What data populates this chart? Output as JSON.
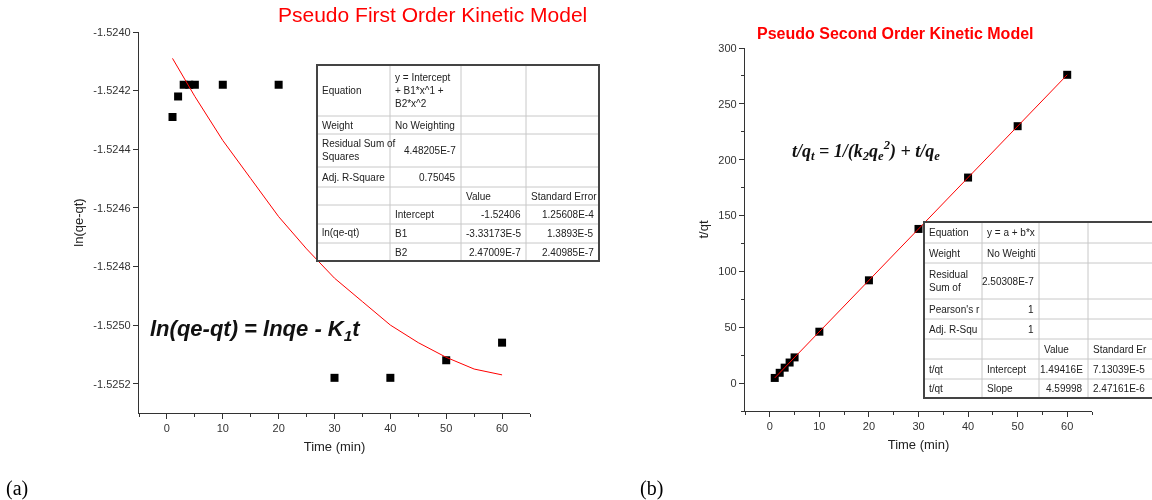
{
  "chart_data": [
    {
      "type": "scatter",
      "title": "Pseudo First Order Kinetic Model",
      "xlabel": "Time (min)",
      "ylabel": "ln(qe-qt)",
      "x": [
        1,
        2,
        3,
        4,
        5,
        10,
        20,
        30,
        40,
        50,
        60
      ],
      "series": [
        {
          "color": "#000000",
          "marker": "square",
          "values": [
            -1.52429,
            -1.52422,
            -1.52418,
            -1.52418,
            -1.52418,
            -1.52418,
            -1.52418,
            -1.52518,
            -1.52518,
            -1.52512,
            -1.52506
          ]
        },
        {
          "type": "line",
          "color": "#ff0000",
          "marker": "none",
          "x": [
            1,
            5,
            10,
            15,
            20,
            25,
            30,
            35,
            40,
            45,
            50,
            55,
            60
          ],
          "values": [
            -1.52409,
            -1.52422,
            -1.52437,
            -1.5245,
            -1.52463,
            -1.52474,
            -1.52484,
            -1.52492,
            -1.525,
            -1.52506,
            -1.52511,
            -1.52515,
            -1.52517
          ]
        }
      ],
      "xlim": [
        -5,
        65
      ],
      "xticks": [
        0,
        10,
        20,
        30,
        40,
        50,
        60
      ],
      "ylim": [
        -1.5253,
        -1.524
      ],
      "yticks": [
        {
          "value": -1.524,
          "label": "-1.5240"
        },
        {
          "value": -1.5242,
          "label": "-1.5242"
        },
        {
          "value": -1.5244,
          "label": "-1.5244"
        },
        {
          "value": -1.5246,
          "label": "-1.5246"
        },
        {
          "value": -1.5248,
          "label": "-1.5248"
        },
        {
          "value": -1.525,
          "label": "-1.5250"
        },
        {
          "value": -1.5252,
          "label": "-1.5252"
        }
      ],
      "annotations": [
        "ln(qe-qt) = lnqe - K$_{1}$t",
        "Equation",
        "y = Intercept + B1*x^1 + B2*x^2",
        "Weight",
        "No Weighting",
        "Residual Sum of Squares",
        "4.48205E-7",
        "Adj. R-Square",
        "0.75045",
        "Value",
        "Standard Error",
        "ln(qe-qt)",
        "Intercept",
        "-1.52406",
        "1.25608E-4",
        "B1",
        "-3.33173E-5",
        "1.3893E-5",
        "B2",
        "2.47009E-7",
        "2.40985E-7",
        "(a)"
      ]
    },
    {
      "type": "scatter",
      "title": "Pseudo Second Order Kinetic Model",
      "xlabel": "Time (min)",
      "ylabel": "t/qt",
      "x": [
        1,
        2,
        3,
        4,
        5,
        10,
        20,
        30,
        40,
        50,
        60
      ],
      "series": [
        {
          "color": "#000000",
          "marker": "square",
          "values": [
            4.6,
            9.2,
            13.8,
            18.4,
            23,
            46,
            92,
            138,
            184,
            230,
            276
          ]
        },
        {
          "type": "line",
          "color": "#ff0000",
          "marker": "none",
          "x": [
            1,
            60
          ],
          "values": [
            4.6,
            276
          ]
        }
      ],
      "xlim": [
        -5,
        65
      ],
      "xticks": [
        0,
        10,
        20,
        30,
        40,
        50,
        60
      ],
      "ylim": [
        -25,
        300
      ],
      "yticks": [
        0,
        50,
        100,
        150,
        200,
        250,
        300
      ],
      "annotations": [
        "t/q$_{t}$ = 1/(k$_{2}$q$_{e}$$^{2}$) + t/q$_{e}$",
        "Equation",
        "y = a + b*x",
        "Weight",
        "No Weighti",
        "Residual Sum of",
        "2.50308E-7",
        "Pearson's r",
        "1",
        "Adj. R-Squ",
        "1",
        "Value",
        "Standard Er",
        "t/qt",
        "Intercept",
        "1.49416E",
        "7.13039E-5",
        "t/qt",
        "Slope",
        "4.59998",
        "2.47161E-6",
        "(b)"
      ]
    }
  ]
}
